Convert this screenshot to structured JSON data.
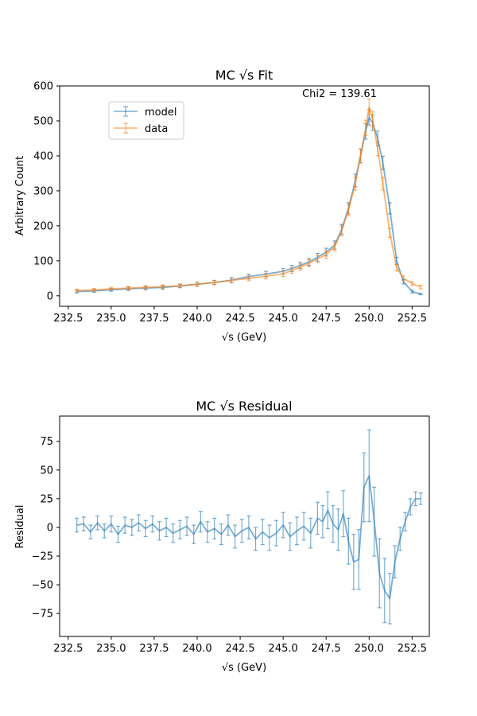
{
  "chart_data": [
    {
      "type": "line",
      "title": "MC √s Fit",
      "xlabel": "√s (GeV)",
      "ylabel": "Arbitrary Count",
      "xlim": [
        232.0,
        253.5
      ],
      "ylim": [
        -30,
        600
      ],
      "xticks": [
        232.5,
        235.0,
        237.5,
        240.0,
        242.5,
        245.0,
        247.5,
        250.0,
        252.5
      ],
      "xtick_labels": [
        "232.5",
        "235.0",
        "237.5",
        "240.0",
        "242.5",
        "245.0",
        "247.5",
        "250.0",
        "252.5"
      ],
      "yticks": [
        0,
        100,
        200,
        300,
        400,
        500,
        600
      ],
      "ytick_labels": [
        "0",
        "100",
        "200",
        "300",
        "400",
        "500",
        "600"
      ],
      "annotation": "Chi2 = 139.61",
      "legend": {
        "location": "upper-left",
        "entries": [
          "model",
          "data"
        ]
      },
      "series": [
        {
          "name": "model",
          "color": "#1f77b4",
          "x": [
            233.0,
            234.0,
            235.0,
            236.0,
            237.0,
            238.0,
            239.0,
            240.0,
            241.0,
            242.0,
            243.0,
            244.0,
            245.0,
            245.5,
            246.0,
            246.5,
            247.0,
            247.5,
            248.0,
            248.4,
            248.8,
            249.2,
            249.5,
            249.8,
            250.0,
            250.2,
            250.5,
            250.8,
            251.2,
            251.6,
            252.0,
            252.5,
            253.0
          ],
          "y": [
            12,
            14,
            17,
            20,
            22,
            24,
            28,
            33,
            38,
            45,
            55,
            62,
            70,
            78,
            87,
            97,
            110,
            125,
            145,
            190,
            250,
            330,
            400,
            470,
            510,
            495,
            450,
            380,
            250,
            100,
            40,
            12,
            5
          ],
          "yerr": [
            4,
            4,
            4,
            5,
            5,
            5,
            5,
            6,
            6,
            7,
            7,
            8,
            8,
            9,
            9,
            10,
            11,
            11,
            12,
            14,
            16,
            18,
            20,
            22,
            22,
            22,
            21,
            19,
            16,
            10,
            6,
            4,
            2
          ]
        },
        {
          "name": "data",
          "color": "#ff7f0e",
          "x": [
            233.0,
            234.0,
            235.0,
            236.0,
            237.0,
            238.0,
            239.0,
            240.0,
            241.0,
            242.0,
            243.0,
            244.0,
            245.0,
            245.5,
            246.0,
            246.5,
            247.0,
            247.5,
            248.0,
            248.4,
            248.8,
            249.2,
            249.5,
            249.8,
            250.0,
            250.2,
            250.5,
            250.8,
            251.2,
            251.6,
            252.0,
            252.5,
            253.0
          ],
          "y": [
            15,
            17,
            20,
            22,
            24,
            26,
            29,
            33,
            38,
            44,
            50,
            56,
            63,
            72,
            82,
            93,
            105,
            118,
            140,
            185,
            245,
            320,
            400,
            480,
            540,
            505,
            420,
            320,
            180,
            80,
            50,
            35,
            25
          ],
          "yerr": [
            4,
            4,
            4,
            5,
            5,
            5,
            5,
            6,
            6,
            7,
            7,
            8,
            8,
            8,
            9,
            10,
            10,
            11,
            12,
            14,
            16,
            18,
            20,
            22,
            23,
            22,
            20,
            18,
            13,
            9,
            7,
            6,
            5
          ]
        }
      ]
    },
    {
      "type": "line",
      "title": "MC √s Residual",
      "xlabel": "√s (GeV)",
      "ylabel": "Residual",
      "xlim": [
        232.0,
        253.5
      ],
      "ylim": [
        -95,
        97
      ],
      "xticks": [
        232.5,
        235.0,
        237.5,
        240.0,
        242.5,
        245.0,
        247.5,
        250.0,
        252.5
      ],
      "xtick_labels": [
        "232.5",
        "235.0",
        "237.5",
        "240.0",
        "242.5",
        "245.0",
        "247.5",
        "250.0",
        "252.5"
      ],
      "yticks": [
        -75,
        -50,
        -25,
        0,
        25,
        50,
        75
      ],
      "ytick_labels": [
        "−75",
        "−50",
        "−25",
        "0",
        "25",
        "50",
        "75"
      ],
      "series": [
        {
          "name": "residual",
          "color": "#1f77b4",
          "x": [
            233.0,
            233.4,
            233.8,
            234.2,
            234.6,
            235.0,
            235.4,
            235.8,
            236.2,
            236.6,
            237.0,
            237.4,
            237.8,
            238.2,
            238.6,
            239.0,
            239.4,
            239.8,
            240.2,
            240.6,
            241.0,
            241.4,
            241.8,
            242.2,
            242.6,
            243.0,
            243.4,
            243.8,
            244.2,
            244.6,
            245.0,
            245.4,
            245.8,
            246.2,
            246.6,
            247.0,
            247.3,
            247.6,
            247.9,
            248.2,
            248.5,
            248.8,
            249.1,
            249.4,
            249.7,
            250.0,
            250.3,
            250.6,
            250.9,
            251.2,
            251.5,
            251.8,
            252.1,
            252.4,
            252.7,
            253.0
          ],
          "y": [
            2,
            3,
            -4,
            4,
            -3,
            3,
            -6,
            2,
            0,
            4,
            -1,
            3,
            -3,
            0,
            -5,
            -2,
            1,
            -6,
            5,
            -4,
            -1,
            -6,
            2,
            -8,
            -3,
            0,
            -10,
            -4,
            -9,
            -5,
            2,
            -8,
            -3,
            1,
            -5,
            8,
            5,
            15,
            3,
            -2,
            12,
            -12,
            -30,
            -28,
            35,
            45,
            5,
            -40,
            -55,
            -62,
            -30,
            -10,
            5,
            18,
            25,
            25
          ],
          "yerr": [
            6,
            6,
            6,
            6,
            6,
            7,
            7,
            7,
            7,
            7,
            7,
            7,
            8,
            8,
            8,
            8,
            8,
            8,
            9,
            9,
            9,
            9,
            9,
            10,
            10,
            10,
            10,
            11,
            11,
            11,
            11,
            12,
            12,
            12,
            13,
            14,
            14,
            16,
            16,
            18,
            20,
            20,
            24,
            26,
            30,
            40,
            30,
            30,
            28,
            22,
            14,
            10,
            8,
            7,
            6,
            5
          ]
        }
      ]
    }
  ]
}
